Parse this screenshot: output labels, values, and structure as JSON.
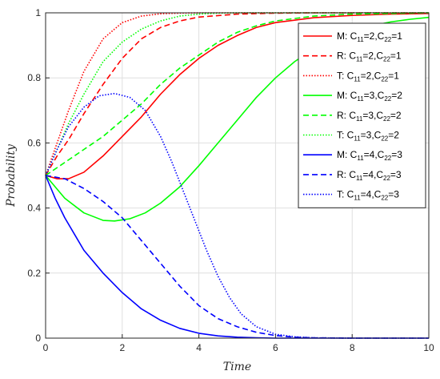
{
  "chart_data": {
    "type": "line",
    "title": "",
    "xlabel": "Time",
    "ylabel": "Probability",
    "xlim": [
      0,
      10
    ],
    "ylim": [
      0,
      1
    ],
    "xticks": [
      0,
      2,
      4,
      6,
      8,
      10
    ],
    "yticks": [
      0,
      0.2,
      0.4,
      0.6,
      0.8,
      1
    ],
    "xtick_labels": [
      "0",
      "2",
      "4",
      "6",
      "8",
      "10"
    ],
    "ytick_labels": [
      "0",
      "0.2",
      "0.4",
      "0.6",
      "0.8",
      "1"
    ],
    "grid": true,
    "legend_position": "top-right",
    "series": [
      {
        "name": "M: C11=2,C22=1",
        "label_prefix": "M: C",
        "label_mid": "=2,C",
        "label_suffix": "=1",
        "color": "#ff0000",
        "style": "solid",
        "x": [
          0,
          0.3,
          0.6,
          1.0,
          1.5,
          2.0,
          2.5,
          3.0,
          3.5,
          4.0,
          4.5,
          5.0,
          5.5,
          6.0,
          7.0,
          8.0,
          9.0,
          10.0
        ],
        "y": [
          0.5,
          0.49,
          0.49,
          0.51,
          0.56,
          0.62,
          0.68,
          0.75,
          0.81,
          0.86,
          0.9,
          0.93,
          0.955,
          0.97,
          0.985,
          0.992,
          0.996,
          0.998
        ]
      },
      {
        "name": "R: C11=2,C22=1",
        "label_prefix": "R: C",
        "label_mid": "=2,C",
        "label_suffix": "=1",
        "color": "#ff0000",
        "style": "dashed",
        "x": [
          0,
          0.3,
          0.6,
          1.0,
          1.5,
          2.0,
          2.5,
          3.0,
          3.5,
          4.0,
          5.0,
          6.0,
          7.0,
          8.0,
          10.0
        ],
        "y": [
          0.5,
          0.56,
          0.61,
          0.69,
          0.78,
          0.86,
          0.92,
          0.955,
          0.975,
          0.987,
          0.996,
          0.999,
          1.0,
          1.0,
          1.0
        ]
      },
      {
        "name": "T: C11=2,C22=1",
        "label_prefix": "T: C",
        "label_mid": "=2,C",
        "label_suffix": "=1",
        "color": "#ff0000",
        "style": "dotted",
        "x": [
          0,
          0.3,
          0.6,
          1.0,
          1.5,
          2.0,
          2.5,
          3.0,
          3.5,
          4.0,
          5.0,
          6.0,
          8.0,
          10.0
        ],
        "y": [
          0.5,
          0.6,
          0.7,
          0.82,
          0.92,
          0.97,
          0.99,
          0.997,
          0.999,
          1.0,
          1.0,
          1.0,
          1.0,
          1.0
        ]
      },
      {
        "name": "M: C11=3,C22=2",
        "label_prefix": "M: C",
        "label_mid": "=3,C",
        "label_suffix": "=2",
        "color": "#00ff00",
        "style": "solid",
        "x": [
          0,
          0.5,
          1.0,
          1.5,
          1.8,
          2.2,
          2.6,
          3.0,
          3.5,
          4.0,
          4.5,
          5.0,
          5.5,
          6.0,
          6.5,
          7.0,
          7.5,
          8.0,
          8.5,
          9.0,
          9.5,
          10.0
        ],
        "y": [
          0.5,
          0.43,
          0.385,
          0.362,
          0.36,
          0.367,
          0.385,
          0.415,
          0.465,
          0.53,
          0.6,
          0.67,
          0.74,
          0.8,
          0.85,
          0.89,
          0.92,
          0.945,
          0.96,
          0.972,
          0.98,
          0.986
        ]
      },
      {
        "name": "R: C11=3,C22=2",
        "label_prefix": "R: C",
        "label_mid": "=3,C",
        "label_suffix": "=2",
        "color": "#00ff00",
        "style": "dashed",
        "x": [
          0,
          0.5,
          1.0,
          1.5,
          2.0,
          2.5,
          3.0,
          3.5,
          4.0,
          4.5,
          5.0,
          5.5,
          6.0,
          7.0,
          8.0,
          9.0,
          10.0
        ],
        "y": [
          0.5,
          0.54,
          0.58,
          0.62,
          0.67,
          0.72,
          0.78,
          0.83,
          0.87,
          0.91,
          0.94,
          0.96,
          0.975,
          0.99,
          0.996,
          0.998,
          1.0
        ]
      },
      {
        "name": "T: C11=3,C22=2",
        "label_prefix": "T: C",
        "label_mid": "=3,C",
        "label_suffix": "=2",
        "color": "#00ff00",
        "style": "dotted",
        "x": [
          0,
          0.3,
          0.6,
          1.0,
          1.5,
          2.0,
          2.5,
          3.0,
          3.5,
          4.0,
          4.5,
          5.0,
          6.0,
          7.0,
          8.0,
          10.0
        ],
        "y": [
          0.5,
          0.58,
          0.66,
          0.75,
          0.85,
          0.91,
          0.95,
          0.975,
          0.99,
          0.996,
          0.999,
          1.0,
          1.0,
          1.0,
          1.0,
          1.0
        ]
      },
      {
        "name": "M: C11=4,C22=3",
        "label_prefix": "M: C",
        "label_mid": "=4,C",
        "label_suffix": "=3",
        "color": "#0000ff",
        "style": "solid",
        "x": [
          0,
          0.25,
          0.5,
          0.75,
          1.0,
          1.5,
          2.0,
          2.5,
          3.0,
          3.5,
          4.0,
          4.5,
          5.0,
          5.5,
          6.0,
          7.0,
          8.0,
          9.0,
          10.0
        ],
        "y": [
          0.5,
          0.43,
          0.37,
          0.32,
          0.27,
          0.2,
          0.14,
          0.09,
          0.055,
          0.03,
          0.015,
          0.007,
          0.003,
          0.001,
          0.0,
          0.0,
          0.0,
          0.0,
          0.0
        ]
      },
      {
        "name": "R: C11=4,C22=3",
        "label_prefix": "R: C",
        "label_mid": "=4,C",
        "label_suffix": "=3",
        "color": "#0000ff",
        "style": "dashed",
        "x": [
          0,
          0.5,
          1.0,
          1.5,
          2.0,
          2.5,
          3.0,
          3.5,
          4.0,
          4.5,
          5.0,
          5.5,
          6.0,
          6.5,
          7.0,
          8.0,
          10.0
        ],
        "y": [
          0.5,
          0.49,
          0.46,
          0.42,
          0.37,
          0.3,
          0.23,
          0.16,
          0.1,
          0.06,
          0.035,
          0.018,
          0.008,
          0.003,
          0.001,
          0.0,
          0.0
        ]
      },
      {
        "name": "T: C11=4,C22=3",
        "label_prefix": "T: C",
        "label_mid": "=4,C",
        "label_suffix": "=3",
        "color": "#0000ff",
        "style": "dotted",
        "x": [
          0,
          0.3,
          0.6,
          1.0,
          1.4,
          1.8,
          2.2,
          2.6,
          3.0,
          3.3,
          3.6,
          3.9,
          4.2,
          4.5,
          4.8,
          5.1,
          5.5,
          6.0,
          6.5,
          7.0,
          8.0,
          10.0
        ],
        "y": [
          0.5,
          0.58,
          0.65,
          0.71,
          0.745,
          0.752,
          0.74,
          0.7,
          0.62,
          0.54,
          0.45,
          0.36,
          0.27,
          0.19,
          0.125,
          0.075,
          0.035,
          0.012,
          0.004,
          0.001,
          0.0,
          0.0
        ]
      }
    ]
  }
}
